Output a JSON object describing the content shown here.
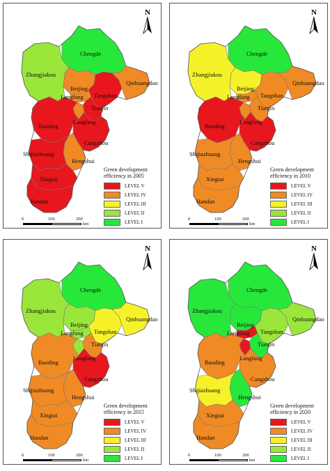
{
  "colors": {
    "level5": "#e8161d",
    "level4": "#f08a24",
    "level3": "#f5f22a",
    "level2": "#9ae63a",
    "level1": "#27e83a"
  },
  "north_label": "N",
  "legend": {
    "title_line1": "Green development",
    "levels": [
      "LEVEL  V",
      "LEVEL  IV",
      "LEVEL  III",
      "LEVEL  II",
      "LEVEL   I"
    ]
  },
  "scale": {
    "t0": "0",
    "t1": "100",
    "t2": "200",
    "unit": "km"
  },
  "panels": [
    {
      "title_line2": "efficiency in 2005",
      "levels": {
        "Chengde": "level1",
        "Zhangjiakou": "level2",
        "Beijing": "level4",
        "Langfang": "level4",
        "Tangshan": "level5",
        "Qinhuangdao": "level4",
        "Tianjin": "level5",
        "Baoding": "level5",
        "Cangzhou": "level5",
        "Hengshui": "level4",
        "Shijiazhuang": "level5",
        "Xingtai": "level5",
        "Handan": "level5"
      },
      "labels": {
        "Chengde": "Chengde",
        "Zhangjiakou": "Zhangjiakou",
        "Beijing": "Beijing",
        "Langfang": "Langfang",
        "Tangshan": "Tangshan",
        "Qinhuangdao": "Qinhuangdao",
        "Tianjin": "Tianjin",
        "Baoding": "Baoding",
        "Langfang2": "Langfang",
        "Cangzhou": "Cangzhou",
        "Hengshui": "Hengshui",
        "Shijiazhuang": "Shijiazhuang",
        "Xingtai": "Xingtai",
        "Handan": "Handan"
      }
    },
    {
      "title_line2": "efficiency in 2010",
      "levels": {
        "Chengde": "level1",
        "Zhangjiakou": "level3",
        "Beijing": "level3",
        "Langfang": "level4",
        "Tangshan": "level4",
        "Qinhuangdao": "level4",
        "Tianjin": "level4",
        "Baoding": "level5",
        "Cangzhou": "level5",
        "Hengshui": "level4",
        "Shijiazhuang": "level4",
        "Xingtai": "level4",
        "Handan": "level4"
      },
      "labels": {
        "Chengde": "Chengde",
        "Zhangjiakou": "Zhangjiakou",
        "Beijing": "Beijing",
        "Langfang": "Langfang",
        "Tangshan": "Tangshan",
        "Qinhuangdao": "Qinhuangdao",
        "Tianjin": "Tianjin",
        "Baoding": "Baoding",
        "Langfang2": "Langfang",
        "Cangzhou": "Cangzhou",
        "Hengshui": "Hengshui",
        "Shijiazhuang": "Shijiazhuang",
        "Xingtai": "Xingtai",
        "Handan": "Handan"
      }
    },
    {
      "title_line2": "efficiency in 2015",
      "levels": {
        "Chengde": "level1",
        "Zhangjiakou": "level2",
        "Beijing": "level2",
        "Langfang": "level2",
        "Tangshan": "level3",
        "Qinhuangdao": "level3",
        "Tianjin": "level4",
        "Baoding": "level4",
        "Cangzhou": "level5",
        "Hengshui": "level4",
        "Shijiazhuang": "level4",
        "Xingtai": "level4",
        "Handan": "level4"
      },
      "labels": {
        "Chengde": "Chengde",
        "Zhangjiakou": "Zhangjiakou",
        "Beijing": "Beijing",
        "Langfang": "Langfang",
        "Tangshan": "Tangshan",
        "Qinhuangdao": "Qinhuangdao",
        "Tianjin": "Tianjin",
        "Baoding": "Baoding",
        "Langfang2": "Langfang",
        "Cangzhou": "Cangzhou",
        "Hengshui": "Hengshui",
        "Shijiazhuang": "Shijiazhuang",
        "Xingtai": "Xingtai",
        "Handan": "Handan"
      }
    },
    {
      "title_line2": "efficiency in 2020",
      "levels": {
        "Chengde": "level1",
        "Zhangjiakou": "level1",
        "Beijing": "level1",
        "Langfang": "level5",
        "Tangshan": "level2",
        "Qinhuangdao": "level2",
        "Tianjin": "level1",
        "Baoding": "level4",
        "Cangzhou": "level4",
        "Hengshui": "level1",
        "Shijiazhuang": "level3",
        "Xingtai": "level4",
        "Handan": "level4"
      },
      "labels": {
        "Chengde": "Chengde",
        "Zhangjiakou": "Zhangjiakou",
        "Beijing": "Beijing",
        "Langfang": "Langfang",
        "Tangshan": "Tangshan",
        "Qinhuangdao": "Qinhuangdao",
        "Tianjin": "Tianjin",
        "Baoding": "Baoding",
        "Langfang2": "Langfang",
        "Cangzhou": "Cangzhou",
        "Hengshui": "Hengshui",
        "Shijiazhuang": "Shijiazhuang",
        "Xingtai": "Xingtai",
        "Handan": "Handan"
      }
    }
  ]
}
